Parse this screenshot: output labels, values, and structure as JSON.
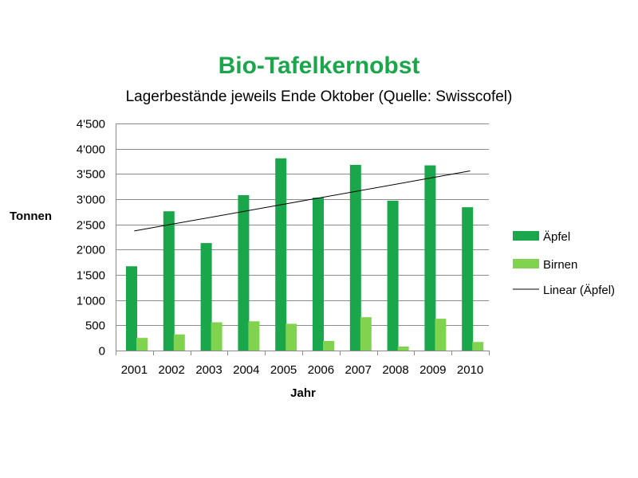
{
  "chart_data": {
    "type": "bar",
    "title": "Bio-Tafelkernobst",
    "subtitle": "Lagerbestände jeweils Ende Oktober (Quelle: Swisscofel)",
    "xlabel": "Jahr",
    "ylabel": "Tonnen",
    "categories": [
      "2001",
      "2002",
      "2003",
      "2004",
      "2005",
      "2006",
      "2007",
      "2008",
      "2009",
      "2010"
    ],
    "ylim": [
      0,
      4500
    ],
    "yticks": [
      0,
      500,
      1000,
      1500,
      2000,
      2500,
      3000,
      3500,
      4000,
      4500
    ],
    "ytick_labels": [
      "0",
      "500",
      "1'000",
      "1'500",
      "2'000",
      "2'500",
      "3'000",
      "3'500",
      "4'000",
      "4'500"
    ],
    "grid": true,
    "legend_position": "right",
    "series": [
      {
        "name": "Äpfel",
        "color": "#1aa64a",
        "values": [
          1670,
          2760,
          2130,
          3080,
          3810,
          3030,
          3680,
          2970,
          3670,
          2840
        ]
      },
      {
        "name": "Birnen",
        "color": "#7fd34e",
        "values": [
          250,
          320,
          560,
          580,
          530,
          190,
          660,
          80,
          630,
          170
        ]
      }
    ],
    "trendline": {
      "name": "Linear (Äpfel)",
      "type": "linear",
      "of_series": "Äpfel",
      "start": [
        2001,
        2370
      ],
      "end": [
        2010,
        3560
      ],
      "color": "#000000"
    }
  }
}
